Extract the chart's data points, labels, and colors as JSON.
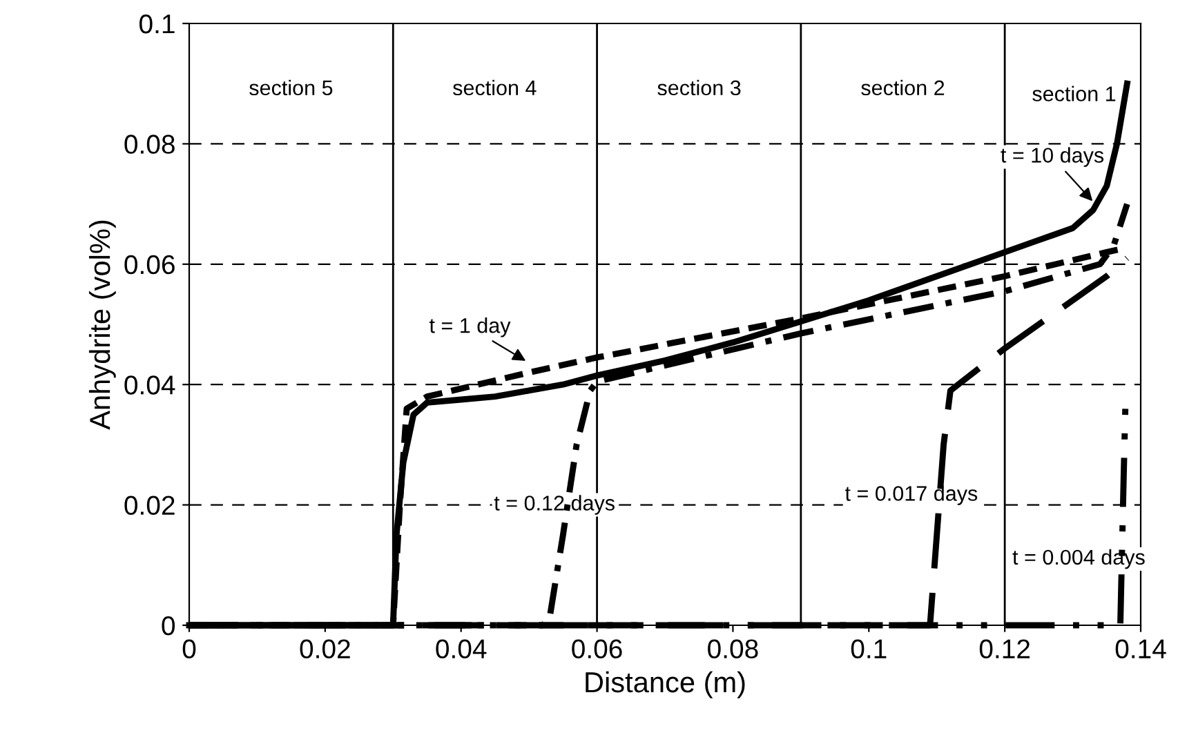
{
  "chart_data": {
    "type": "line",
    "xlabel": "Distance (m)",
    "ylabel": "Anhydrite (vol%)",
    "xlim": [
      0,
      0.14
    ],
    "xticks": [
      0,
      0.02,
      0.04,
      0.06,
      0.08,
      0.1,
      0.12,
      0.14
    ],
    "ylim": [
      0,
      0.1
    ],
    "yticks": [
      0,
      0.02,
      0.04,
      0.06,
      0.08,
      0.1
    ],
    "grid": "y",
    "legend": false,
    "series": [
      {
        "color": "#000000",
        "line_style": "solid",
        "x": [
          0,
          0.03,
          0.0305,
          0.0315,
          0.033,
          0.035,
          0.04,
          0.045,
          0.05,
          0.055,
          0.06,
          0.07,
          0.08,
          0.09,
          0.1,
          0.11,
          0.12,
          0.125,
          0.13,
          0.133,
          0.135,
          0.1365,
          0.138
        ],
        "values": [
          0,
          0,
          0.015,
          0.027,
          0.035,
          0.037,
          0.0375,
          0.038,
          0.039,
          0.04,
          0.0415,
          0.044,
          0.047,
          0.0505,
          0.054,
          0.058,
          0.062,
          0.064,
          0.066,
          0.069,
          0.073,
          0.08,
          0.09
        ]
      },
      {
        "color": "#000000",
        "line_style": "dashed",
        "x": [
          0,
          0.03,
          0.031,
          0.032,
          0.035,
          0.05,
          0.06,
          0.09,
          0.12,
          0.135,
          0.137
        ],
        "values": [
          0,
          0,
          0.02,
          0.036,
          0.038,
          0.042,
          0.0445,
          0.051,
          0.058,
          0.062,
          0.0625
        ]
      },
      {
        "color": "#000000",
        "line_style": "dashed",
        "x": [
          0,
          0.052,
          0.053,
          0.055,
          0.057,
          0.059,
          0.06,
          0.09,
          0.12,
          0.134,
          0.136,
          0.138
        ],
        "values": [
          0,
          0,
          0.001,
          0.015,
          0.03,
          0.039,
          0.0405,
          0.0485,
          0.0555,
          0.06,
          0.063,
          0.07
        ]
      },
      {
        "color": "#000000",
        "line_style": "dashed",
        "x": [
          0,
          0.109,
          0.11,
          0.111,
          0.112,
          0.12,
          0.13,
          0.135,
          0.138
        ],
        "values": [
          0,
          0,
          0.015,
          0.03,
          0.039,
          0.046,
          0.054,
          0.058,
          0.061
        ]
      },
      {
        "color": "#000000",
        "line_style": "dashed",
        "x": [
          0,
          0.137,
          0.1372,
          0.1375,
          0.1378
        ],
        "values": [
          0,
          0,
          0.01,
          0.025,
          0.039
        ]
      }
    ],
    "ref_lines": [
      {
        "axis": "x",
        "value": 0.03,
        "color": "#000000"
      },
      {
        "axis": "x",
        "value": 0.06,
        "color": "#000000"
      },
      {
        "axis": "x",
        "value": 0.09,
        "color": "#000000"
      },
      {
        "axis": "x",
        "value": 0.12,
        "color": "#000000"
      }
    ],
    "annotations": [
      {
        "text": "t = 10 days",
        "x": 0.1333,
        "y": 0.07
      },
      {
        "text": "t = 1 day",
        "x": 0.05,
        "y": 0.0436
      },
      "t = 0.12 days",
      "t = 0.017 days",
      "t = 0.004 days",
      "section 5",
      "section 4",
      "section 3",
      "section 2",
      "section 1"
    ]
  }
}
